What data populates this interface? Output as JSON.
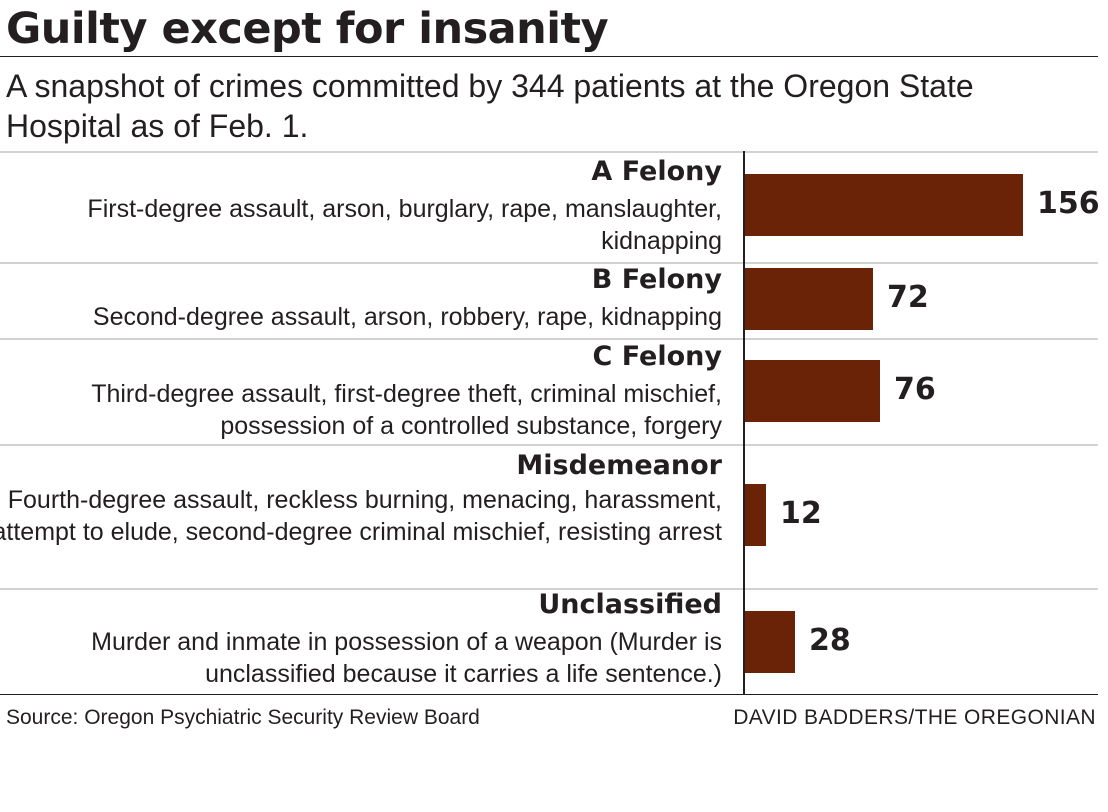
{
  "header": {
    "title": "Guilty except for insanity",
    "subtitle": "A snapshot of crimes committed by 344 patients at the Oregon State Hospital as of Feb. 1."
  },
  "footer": {
    "source": "Source: Oregon Psychiatric Security Review Board",
    "credit": "DAVID BADDERS/THE OREGONIAN"
  },
  "colors": {
    "bar": "#6b2308",
    "row_rule": "#d2d2d2",
    "text": "#231f20"
  },
  "chart_data": {
    "type": "bar",
    "orientation": "horizontal",
    "title": "Guilty except for insanity",
    "subtitle": "A snapshot of crimes committed by 344 patients at the Oregon State Hospital as of Feb. 1.",
    "categories": [
      "A Felony",
      "B Felony",
      "C Felony",
      "Misdemeanor",
      "Unclassified"
    ],
    "descriptions": [
      "First-degree assault, arson, burglary, rape, manslaughter, kidnapping",
      "Second-degree assault, arson, robbery, rape, kidnapping",
      "Third-degree assault, first-degree theft, criminal mischief, possession of a controlled substance, forgery",
      "Fourth-degree assault, reckless burning, menacing, harassment, attempt to elude, second-degree criminal mischief, resisting arrest",
      "Murder and inmate in possession of a weapon (Murder is unclassified because it carries a life sentence.)"
    ],
    "values": [
      156,
      72,
      76,
      12,
      28
    ],
    "value_labels": [
      "156",
      "72",
      "76",
      "12",
      "28"
    ],
    "xlim": [
      0,
      156
    ],
    "grid": false,
    "legend": "none"
  }
}
